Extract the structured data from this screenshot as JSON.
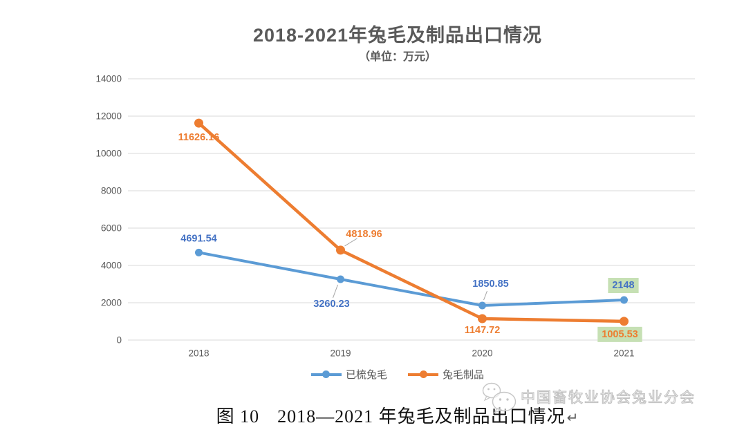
{
  "chart_data": {
    "type": "line",
    "title": "2018-2021年兔毛及制品出口情况",
    "subtitle": "（单位：万元）",
    "categories": [
      "2018",
      "2019",
      "2020",
      "2021"
    ],
    "series": [
      {
        "name": "已梳兔毛",
        "color": "#5B9BD5",
        "label_color": "#4472C4",
        "values": [
          4691.54,
          3260.23,
          1850.85,
          2148
        ],
        "labels": [
          "4691.54",
          "3260.23",
          "1850.85",
          "2148"
        ]
      },
      {
        "name": "兔毛制品",
        "color": "#ED7D31",
        "label_color": "#ED7D31",
        "values": [
          11626.16,
          4818.96,
          1147.72,
          1005.53
        ],
        "labels": [
          "11626.16",
          "4818.96",
          "1147.72",
          "1005.53"
        ]
      }
    ],
    "ylim": [
      0,
      14000
    ],
    "yticks": [
      0,
      2000,
      4000,
      6000,
      8000,
      10000,
      12000,
      14000
    ],
    "grid": true,
    "legend_position": "bottom",
    "axis_text_color": "#595959",
    "grid_color": "#D9D9D9",
    "leader_color": "#A6A6A6",
    "highlight_fill": "#C6E0B4",
    "highlighted_labels": [
      "2148",
      "1005.53"
    ]
  },
  "caption": {
    "prefix": "图 10",
    "text": "2018—2021 年兔毛及制品出口情况",
    "return_mark": "↵"
  },
  "watermark": {
    "icon": "wechat-logo",
    "text": "中国畜牧业协会兔业分会"
  }
}
